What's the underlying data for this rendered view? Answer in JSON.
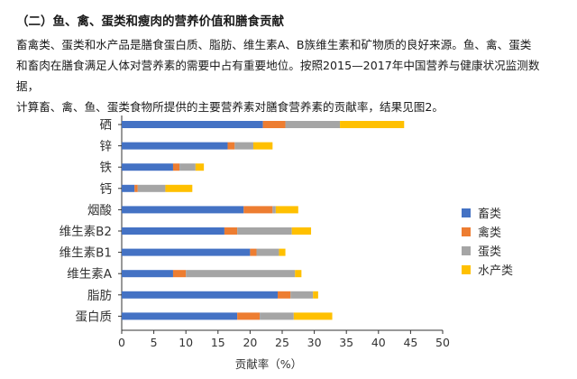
{
  "heading": "（二）鱼、禽、蛋类和瘦肉的营养价值和膳食贡献",
  "paragraph": {
    "line1": "畜禽类、蛋类和水产品是膳食蛋白质、脂肪、维生素A、B族维生素和矿物质的良好来源。鱼、禽、蛋类",
    "line2": "和畜肉在膳食满足人体对营养素的需要中占有重要地位。按照2015—2017年中国营养与健康状况监测数据，",
    "line3": "计算畜、禽、鱼、蛋类食物所提供的主要营养素对膳食营养素的贡献率，结果见图2。"
  },
  "colors": {
    "畜类": "#4472C4",
    "禽类": "#ED7D31",
    "蛋类": "#A5A5A5",
    "水产类": "#FFC000",
    "grid": "#d0d0d0",
    "axis": "#333333",
    "text": "#333333"
  },
  "chart_data": {
    "type": "bar",
    "orientation": "horizontal",
    "stacked": true,
    "xlabel": "贡献率（%）",
    "xlim": [
      0,
      50
    ],
    "xticks": [
      0,
      5,
      10,
      15,
      20,
      25,
      30,
      35,
      40,
      45,
      50
    ],
    "grid": false,
    "legend_position": "right",
    "categories": [
      "硒",
      "锌",
      "铁",
      "钙",
      "烟酸",
      "维生素B2",
      "维生素B1",
      "维生素A",
      "脂肪",
      "蛋白质"
    ],
    "series": [
      {
        "name": "畜类",
        "values": [
          22,
          16.5,
          8,
          2,
          19,
          16,
          20,
          8,
          24.3,
          18
        ]
      },
      {
        "name": "禽类",
        "values": [
          3.5,
          1.1,
          1,
          0.5,
          4.5,
          2,
          1,
          2,
          2,
          3.5
        ]
      },
      {
        "name": "蛋类",
        "values": [
          8.5,
          2.9,
          2.5,
          4.3,
          0.5,
          8.5,
          3.5,
          17,
          3.5,
          5.3
        ]
      },
      {
        "name": "水产类",
        "values": [
          10,
          3,
          1.3,
          4.2,
          3.5,
          3,
          1,
          1,
          0.8,
          6
        ]
      }
    ]
  }
}
